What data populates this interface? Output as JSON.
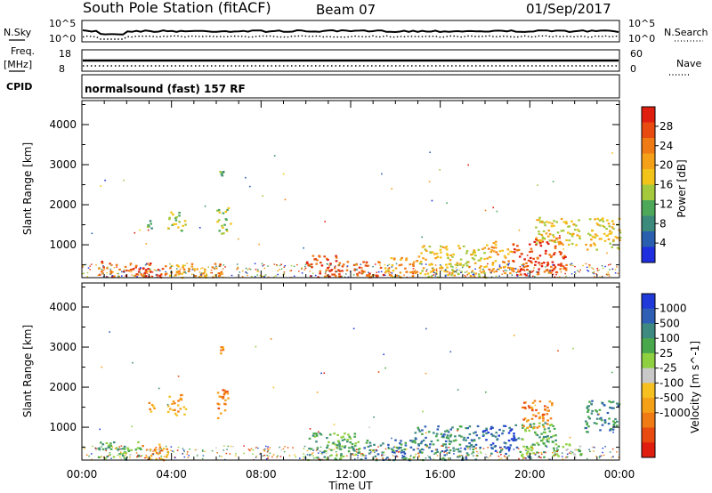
{
  "header": {
    "station": "South Pole Station (fitACF)",
    "beam": "Beam 07",
    "date": "01/Sep/2017"
  },
  "strip_labels": {
    "nsky": "N.Sky",
    "nsky_top": "10^5",
    "nsky_bottom": "10^0",
    "nsearch": "N.Search",
    "nsearch_top": "10^5",
    "nsearch_bottom": "10^0",
    "freq": "Freq.",
    "freq_unit": "[MHz]",
    "freq_top": "18",
    "freq_bottom": "8",
    "nave": "Nave",
    "nave_top": "60",
    "nave_bottom": "0",
    "cpid": "CPID",
    "cpid_text": "normalsound (fast) 157 RF"
  },
  "chart_data": [
    {
      "type": "heatmap",
      "panel": "power",
      "ylabel": "Slant Range [km]",
      "ylim": [
        180,
        4600
      ],
      "yticks": [
        "1000",
        "2000",
        "3000",
        "4000"
      ],
      "xlabel": "Time UT",
      "xticks": [
        "00:00",
        "04:00",
        "08:00",
        "12:00",
        "16:00",
        "20:00",
        "00:00"
      ],
      "colorbar": {
        "label": "Power [dB]",
        "ticks": [
          "4",
          "8",
          "12",
          "16",
          "20",
          "24",
          "28"
        ],
        "colors": [
          "#1f2fe0",
          "#2a5fb0",
          "#3c8a7c",
          "#4ea85a",
          "#a5c93c",
          "#f2c318",
          "#f5a019",
          "#f07a14",
          "#e84a10",
          "#e01e10"
        ]
      },
      "patches": [
        {
          "t0": 0.7,
          "t1": 3.6,
          "r0": 200,
          "r1": 600,
          "level": 8
        },
        {
          "t0": 3.6,
          "t1": 6.5,
          "r0": 200,
          "r1": 550,
          "level": 6
        },
        {
          "t0": 3.8,
          "t1": 4.6,
          "r0": 1350,
          "r1": 1850,
          "level": 4
        },
        {
          "t0": 6.0,
          "t1": 6.6,
          "r0": 1300,
          "r1": 1950,
          "level": 4
        },
        {
          "t0": 2.8,
          "t1": 3.2,
          "r0": 1400,
          "r1": 1650,
          "level": 3
        },
        {
          "t0": 10.0,
          "t1": 11.4,
          "r0": 200,
          "r1": 750,
          "level": 8
        },
        {
          "t0": 11.4,
          "t1": 13.5,
          "r0": 200,
          "r1": 600,
          "level": 8
        },
        {
          "t0": 13.5,
          "t1": 15.0,
          "r0": 200,
          "r1": 700,
          "level": 6
        },
        {
          "t0": 15.0,
          "t1": 18.0,
          "r0": 200,
          "r1": 1000,
          "level": 5
        },
        {
          "t0": 18.0,
          "t1": 19.2,
          "r0": 300,
          "r1": 1100,
          "level": 6
        },
        {
          "t0": 19.2,
          "t1": 21.6,
          "r0": 250,
          "r1": 1200,
          "level": 8
        },
        {
          "t0": 20.2,
          "t1": 22.2,
          "r0": 1000,
          "r1": 1700,
          "level": 5
        },
        {
          "t0": 22.4,
          "t1": 24.0,
          "r0": 900,
          "r1": 1700,
          "level": 5
        },
        {
          "t0": 6.1,
          "t1": 6.3,
          "r0": 2750,
          "r1": 3050,
          "level": 3
        }
      ]
    },
    {
      "type": "heatmap",
      "panel": "velocity",
      "ylabel": "Slant Range [km]",
      "ylim": [
        180,
        4600
      ],
      "yticks": [
        "1000",
        "2000",
        "3000",
        "4000"
      ],
      "xlabel": "Time UT",
      "xticks": [
        "00:00",
        "04:00",
        "08:00",
        "12:00",
        "16:00",
        "20:00",
        "00:00"
      ],
      "colorbar": {
        "label": "Velocity [m s^-1]",
        "ticks": [
          "1000",
          "500",
          "100",
          "25",
          "-25",
          "-100",
          "-500",
          "-1000"
        ],
        "colors": [
          "#1f3ad8",
          "#2f5fb5",
          "#3e8a80",
          "#4aa84c",
          "#8fd040",
          "#c8c8c8",
          "#f5c020",
          "#f5a019",
          "#f07a14",
          "#e84a10",
          "#e01e10"
        ]
      },
      "patches": [
        {
          "t0": 0.7,
          "t1": 2.6,
          "r0": 200,
          "r1": 650,
          "level": 3
        },
        {
          "t0": 2.6,
          "t1": 3.8,
          "r0": 200,
          "r1": 600,
          "level": 7
        },
        {
          "t0": 3.8,
          "t1": 4.6,
          "r0": 1300,
          "r1": 1850,
          "level": 7
        },
        {
          "t0": 6.0,
          "t1": 6.6,
          "r0": 1250,
          "r1": 1950,
          "level": 8
        },
        {
          "t0": 2.8,
          "t1": 3.2,
          "r0": 1400,
          "r1": 1650,
          "level": 7
        },
        {
          "t0": 10.0,
          "t1": 12.5,
          "r0": 200,
          "r1": 900,
          "level": 3
        },
        {
          "t0": 12.5,
          "t1": 14.8,
          "r0": 200,
          "r1": 700,
          "level": 2
        },
        {
          "t0": 14.8,
          "t1": 17.8,
          "r0": 200,
          "r1": 1050,
          "level": 2
        },
        {
          "t0": 17.8,
          "t1": 19.4,
          "r0": 350,
          "r1": 1100,
          "level": 1
        },
        {
          "t0": 19.4,
          "t1": 21.2,
          "r0": 250,
          "r1": 1150,
          "level": 3
        },
        {
          "t0": 19.6,
          "t1": 21.0,
          "r0": 1000,
          "r1": 1700,
          "level": 8
        },
        {
          "t0": 21.0,
          "t1": 22.3,
          "r0": 250,
          "r1": 600,
          "level": 4
        },
        {
          "t0": 22.4,
          "t1": 24.0,
          "r0": 900,
          "r1": 1700,
          "level": 2
        },
        {
          "t0": 6.1,
          "t1": 6.3,
          "r0": 2750,
          "r1": 3050,
          "level": 7
        }
      ]
    }
  ]
}
